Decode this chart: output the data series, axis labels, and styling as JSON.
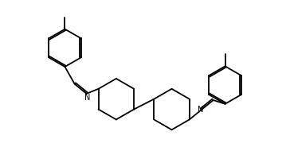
{
  "bg_color": "#ffffff",
  "line_color": "#000000",
  "line_width": 1.3,
  "figsize": [
    3.64,
    1.85
  ],
  "dpi": 100
}
